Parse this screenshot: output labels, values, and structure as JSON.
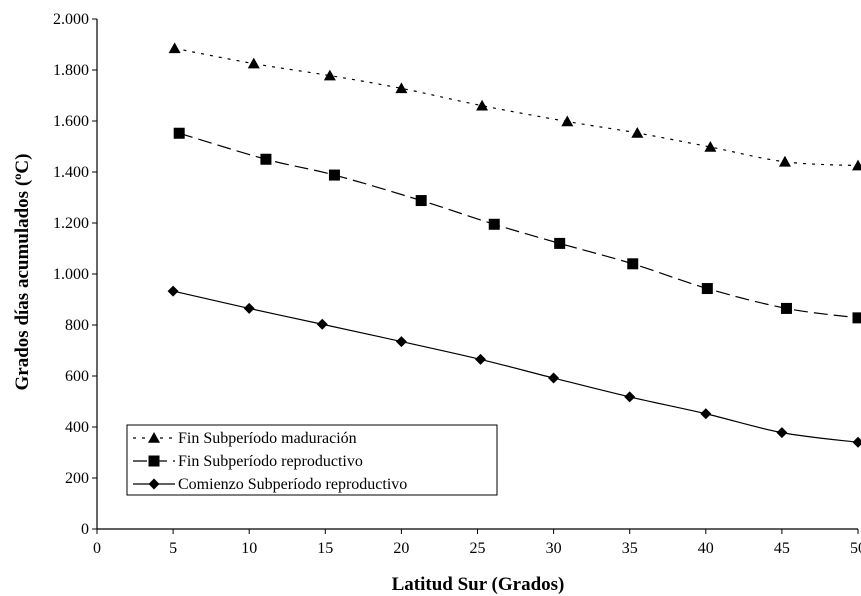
{
  "chart_data": {
    "type": "line",
    "title": "",
    "xlabel": "Latitud Sur (Grados)",
    "ylabel": "Grados días acumulados (ºC)",
    "xlim": [
      0,
      50
    ],
    "ylim": [
      0,
      2000
    ],
    "x_ticks": [
      0,
      5,
      10,
      15,
      20,
      25,
      30,
      35,
      40,
      45,
      50
    ],
    "x_tick_labels": [
      "0",
      "5",
      "10",
      "15",
      "20",
      "25",
      "30",
      "35",
      "40",
      "45",
      "50"
    ],
    "y_ticks": [
      0,
      200,
      400,
      600,
      800,
      1000,
      1200,
      1400,
      1600,
      1800,
      2000
    ],
    "y_tick_labels": [
      "0",
      "200",
      "400",
      "600",
      "800",
      "1.000",
      "1.200",
      "1.400",
      "1.600",
      "1.800",
      "2.000"
    ],
    "grid": false,
    "legend_position": "bottom-left",
    "series": [
      {
        "name": "Fin Subperíodo maduración",
        "marker": "triangle",
        "line_style": "dotted",
        "x": [
          5.1,
          10.3,
          15.3,
          20.0,
          25.3,
          30.9,
          35.5,
          40.3,
          45.2,
          50.0
        ],
        "y": [
          1885,
          1825,
          1778,
          1728,
          1660,
          1598,
          1553,
          1498,
          1440,
          1425
        ]
      },
      {
        "name": "Fin Subperíodo reproductivo",
        "marker": "square",
        "line_style": "dashed",
        "x": [
          5.4,
          11.1,
          15.6,
          21.3,
          26.1,
          30.4,
          35.2,
          40.1,
          45.3,
          50.0
        ],
        "y": [
          1552,
          1450,
          1388,
          1288,
          1195,
          1120,
          1040,
          943,
          865,
          828
        ]
      },
      {
        "name": "Comienzo Subperíodo reproductivo",
        "marker": "diamond",
        "line_style": "solid",
        "x": [
          5.0,
          10.0,
          14.8,
          20.0,
          25.2,
          30.0,
          35.0,
          40.0,
          45.0,
          50.0
        ],
        "y": [
          933,
          865,
          803,
          735,
          665,
          592,
          518,
          452,
          378,
          340
        ]
      }
    ]
  }
}
